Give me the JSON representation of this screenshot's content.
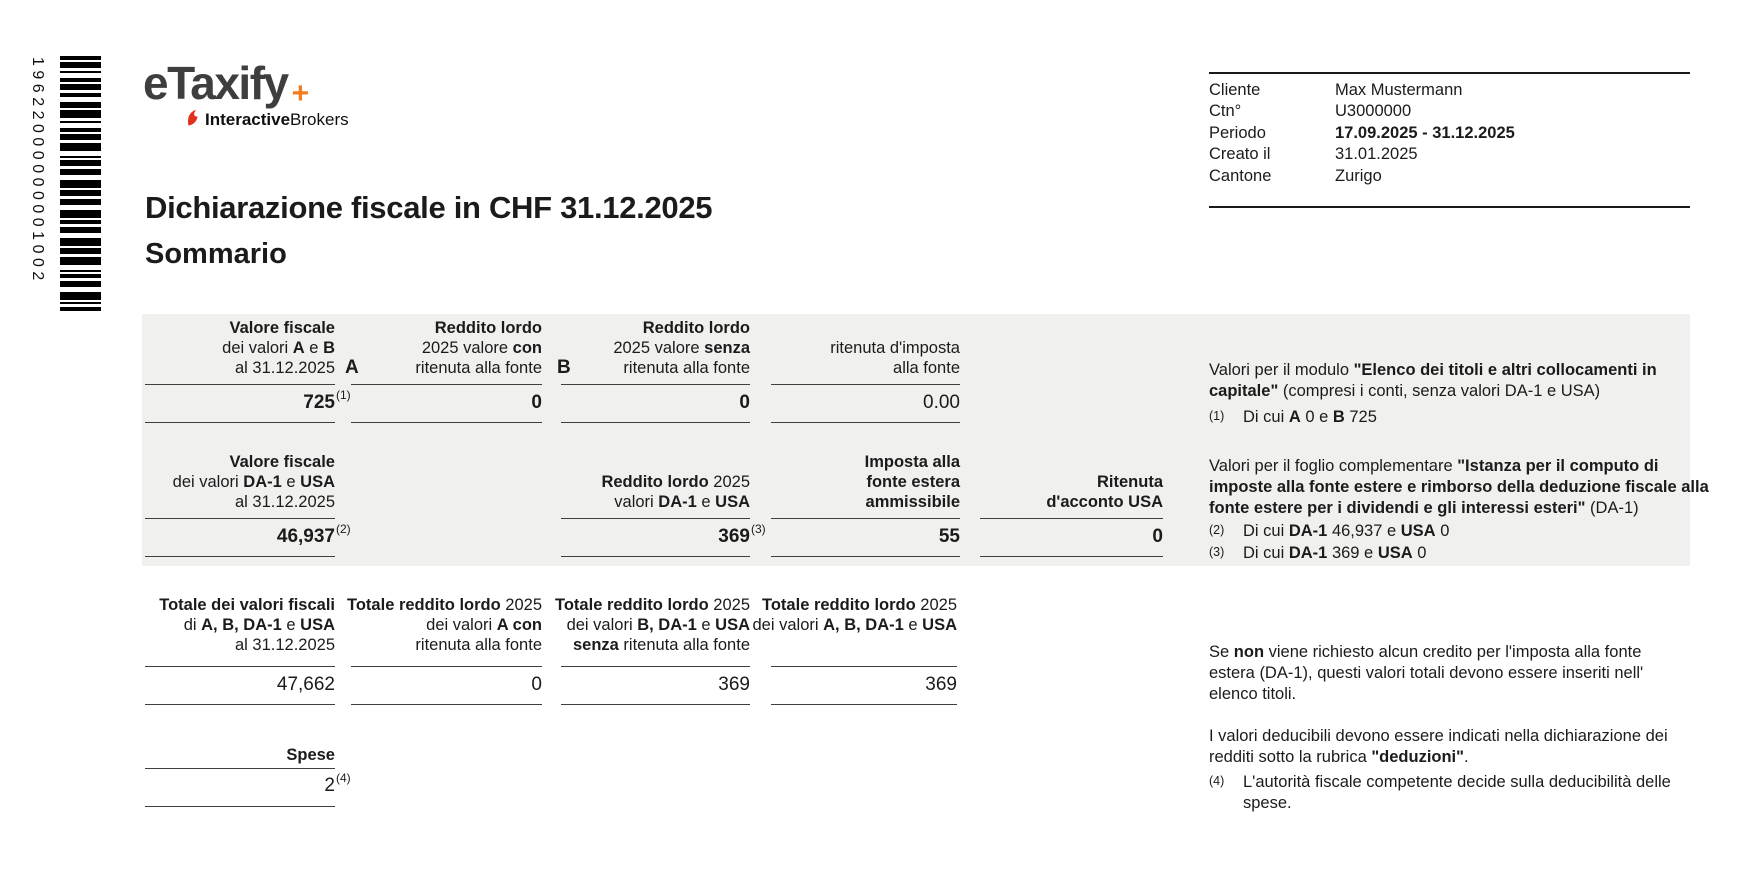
{
  "barcode": {
    "value": "19622000000001002"
  },
  "logo": {
    "brand": "eTaxify",
    "plus": "+",
    "sub_bold": "Interactive",
    "sub_regular": "Brokers"
  },
  "header": {
    "title": "Dichiarazione fiscale in CHF 31.12.2025",
    "subtitle": "Sommario"
  },
  "client_info": {
    "rows": [
      {
        "label": "Cliente",
        "value": "Max Mustermann"
      },
      {
        "label": "Ctn°",
        "value": "U3000000"
      },
      {
        "label": "Periodo",
        "value": "17.09.2025 - 31.12.2025"
      },
      {
        "label": "Creato il",
        "value": "31.01.2025"
      },
      {
        "label": "Cantone",
        "value": "Zurigo"
      }
    ]
  },
  "summary": {
    "row1": {
      "label_a": "A",
      "label_b": "B",
      "c1": {
        "header": [
          [
            {
              "t": "Valore fiscale",
              "b": 1
            }
          ],
          [
            {
              "t": "dei valori "
            },
            {
              "t": "A",
              "b": 1
            },
            {
              "t": " e "
            },
            {
              "t": "B",
              "b": 1
            }
          ],
          [
            {
              "t": "al 31.12.2025"
            }
          ]
        ],
        "value": "725",
        "ref": "(1)"
      },
      "c2": {
        "header": [
          [
            {
              "t": "Reddito lordo",
              "b": 1
            }
          ],
          [
            {
              "t": "2025 valore "
            },
            {
              "t": "con",
              "b": 1
            }
          ],
          [
            {
              "t": "ritenuta alla fonte"
            }
          ]
        ],
        "value": "0",
        "ref": ""
      },
      "c3": {
        "header": [
          [
            {
              "t": "Reddito lordo",
              "b": 1
            }
          ],
          [
            {
              "t": "2025 valore "
            },
            {
              "t": "senza",
              "b": 1
            }
          ],
          [
            {
              "t": "ritenuta alla fonte"
            }
          ]
        ],
        "value": "0",
        "ref": ""
      },
      "c4": {
        "header": [
          [
            {
              "t": "ritenuta d'imposta"
            }
          ],
          [
            {
              "t": "alla fonte"
            }
          ]
        ],
        "value": "0.00",
        "ref": ""
      }
    },
    "row2": {
      "c1": {
        "header": [
          [
            {
              "t": "Valore fiscale",
              "b": 1
            }
          ],
          [
            {
              "t": "dei valori "
            },
            {
              "t": "DA-1",
              "b": 1
            },
            {
              "t": " e "
            },
            {
              "t": "USA",
              "b": 1
            }
          ],
          [
            {
              "t": "al 31.12.2025"
            }
          ]
        ],
        "value": "46,937",
        "ref": "(2)"
      },
      "c3": {
        "header": [
          [
            {
              "t": "Reddito lordo",
              "b": 1
            },
            {
              "t": " 2025"
            }
          ],
          [
            {
              "t": "valori "
            },
            {
              "t": "DA-1",
              "b": 1
            },
            {
              "t": " e "
            },
            {
              "t": "USA",
              "b": 1
            }
          ]
        ],
        "value": "369",
        "ref": "(3)"
      },
      "c4": {
        "header": [
          [
            {
              "t": "Imposta alla",
              "b": 1
            }
          ],
          [
            {
              "t": "fonte estera",
              "b": 1
            }
          ],
          [
            {
              "t": "ammissibile",
              "b": 1
            }
          ]
        ],
        "value": "55",
        "ref": ""
      },
      "c5": {
        "header": [
          [
            {
              "t": "Ritenuta",
              "b": 1
            }
          ],
          [
            {
              "t": "d'acconto USA",
              "b": 1
            }
          ]
        ],
        "value": "0",
        "ref": ""
      }
    },
    "totals": {
      "c1": {
        "header": [
          [
            {
              "t": "Totale dei valori fiscali",
              "b": 1
            }
          ],
          [
            {
              "t": "di "
            },
            {
              "t": "A, B, DA-1",
              "b": 1
            },
            {
              "t": " e "
            },
            {
              "t": "USA",
              "b": 1
            }
          ],
          [
            {
              "t": "al 31.12.2025"
            }
          ]
        ],
        "value": "47,662"
      },
      "c2": {
        "header": [
          [
            {
              "t": "Totale reddito lordo",
              "b": 1
            },
            {
              "t": " 2025"
            }
          ],
          [
            {
              "t": "dei valori "
            },
            {
              "t": "A con",
              "b": 1
            }
          ],
          [
            {
              "t": "ritenuta alla fonte"
            }
          ]
        ],
        "value": "0"
      },
      "c3": {
        "header": [
          [
            {
              "t": "Totale reddito lordo",
              "b": 1
            },
            {
              "t": " 2025"
            }
          ],
          [
            {
              "t": "dei valori "
            },
            {
              "t": "B, DA-1",
              "b": 1
            },
            {
              "t": " e "
            },
            {
              "t": "USA",
              "b": 1
            }
          ],
          [
            {
              "t": "senza",
              "b": 1
            },
            {
              "t": " ritenuta alla fonte"
            }
          ]
        ],
        "value": "369"
      },
      "c4": {
        "header": [
          [
            {
              "t": "Totale reddito lordo",
              "b": 1
            },
            {
              "t": " 2025"
            }
          ],
          [
            {
              "t": "dei valori "
            },
            {
              "t": "A, B, DA-1",
              "b": 1
            },
            {
              "t": " e "
            },
            {
              "t": "USA",
              "b": 1
            }
          ]
        ],
        "value": "369"
      },
      "spese": {
        "label": "Spese",
        "value": "2",
        "ref": "(4)"
      }
    }
  },
  "notes": {
    "block1_intro": [
      [
        {
          "t": "Valori per il modulo "
        },
        {
          "t": "\"Elenco dei titoli e altri collocamenti in capitale\"",
          "b": 1
        },
        {
          "t": " (compresi i conti, senza valori DA-1 e USA)"
        }
      ]
    ],
    "note1": {
      "ref": "(1)",
      "text": [
        [
          {
            "t": "Di cui "
          },
          {
            "t": "A",
            "b": 1
          },
          {
            "t": " 0 e "
          },
          {
            "t": "B",
            "b": 1
          },
          {
            "t": " 725"
          }
        ]
      ]
    },
    "block2_intro": [
      [
        {
          "t": "Valori per il foglio complementare "
        },
        {
          "t": "\"Istanza per il computo di imposte alla fonte estere e rimborso della deduzione fiscale alla fonte estere per i dividendi e gli interessi esteri\"",
          "b": 1
        },
        {
          "t": " (DA-1)"
        }
      ]
    ],
    "note2": {
      "ref": "(2)",
      "text": [
        [
          {
            "t": "Di cui "
          },
          {
            "t": "DA-1",
            "b": 1
          },
          {
            "t": " 46,937 e "
          },
          {
            "t": "USA",
            "b": 1
          },
          {
            "t": " 0"
          }
        ]
      ]
    },
    "note3": {
      "ref": "(3)",
      "text": [
        [
          {
            "t": "Di cui "
          },
          {
            "t": "DA-1",
            "b": 1
          },
          {
            "t": " 369 e "
          },
          {
            "t": "USA",
            "b": 1
          },
          {
            "t": " 0"
          }
        ]
      ]
    },
    "para_elenco": [
      [
        {
          "t": "Se "
        },
        {
          "t": "non",
          "b": 1
        },
        {
          "t": " viene richiesto alcun credito per l'imposta alla fonte estera (DA-1), questi valori totali devono essere inseriti nell' elenco titoli."
        }
      ]
    ],
    "para_deduzioni": [
      [
        {
          "t": "I valori deducibili devono essere indicati nella dichiarazione dei redditi sotto la rubrica "
        },
        {
          "t": "\"deduzioni\"",
          "b": 1
        },
        {
          "t": "."
        }
      ]
    ],
    "note4": {
      "ref": "(4)",
      "text": [
        [
          {
            "t": "L'autorità fiscale competente decide sulla deducibilità delle spese."
          }
        ]
      ]
    }
  }
}
